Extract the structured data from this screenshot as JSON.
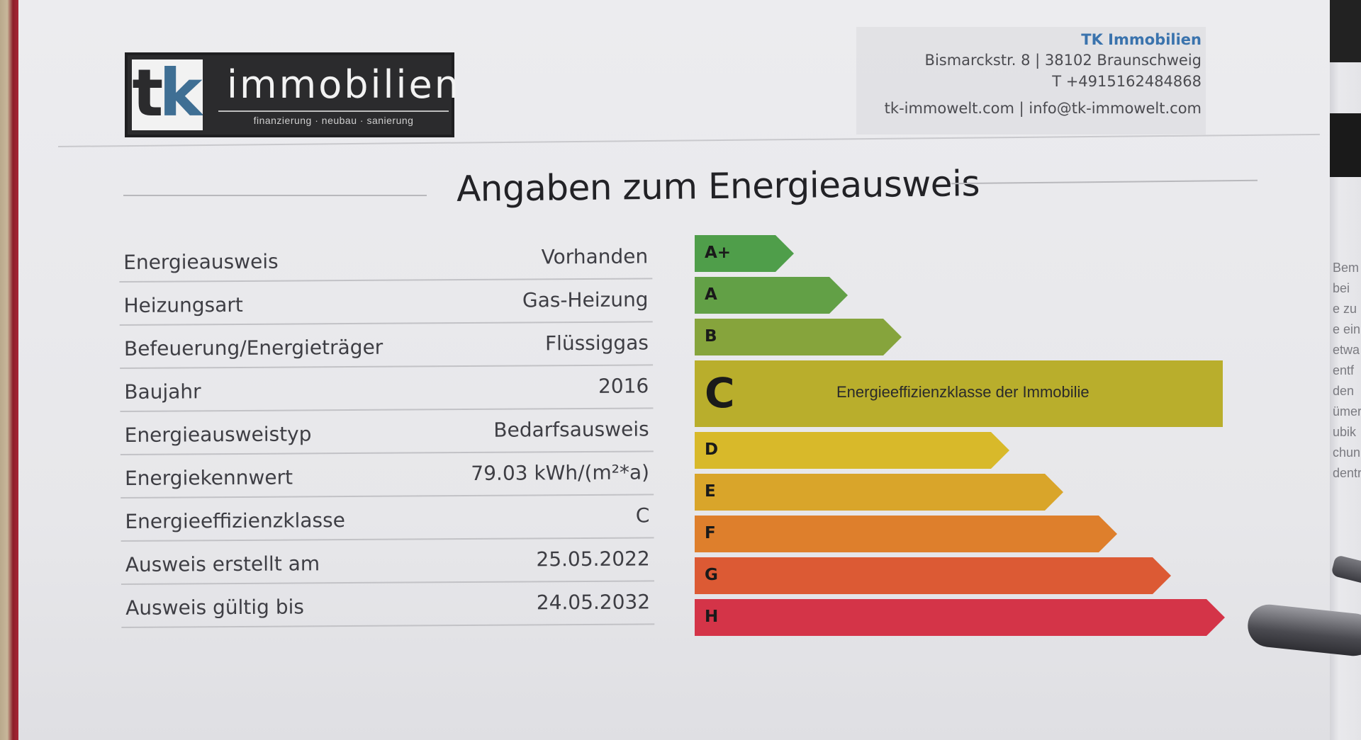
{
  "logo": {
    "mark_t": "t",
    "mark_k": "k",
    "wordmark": "immobilien",
    "tagline": "finanzierung · neubau · sanierung"
  },
  "contact": {
    "company": "TK Immobilien",
    "address": "Bismarckstr. 8 | 38102 Braunschweig",
    "phone": "T +4915162484868",
    "web_mail": "tk-immowelt.com | info@tk-immowelt.com",
    "accent_color": "#3a73ad"
  },
  "title": "Angaben zum Energieausweis",
  "details": [
    {
      "label": "Energieausweis",
      "value": "Vorhanden"
    },
    {
      "label": "Heizungsart",
      "value": "Gas-Heizung"
    },
    {
      "label": "Befeuerung/Energieträger",
      "value": "Flüssiggas"
    },
    {
      "label": "Baujahr",
      "value": "2016"
    },
    {
      "label": "Energieausweistyp",
      "value": "Bedarfsausweis"
    },
    {
      "label": "Energiekennwert",
      "value": "79.03 kWh/(m²*a)"
    },
    {
      "label": "Energieeffizienzklasse",
      "value": "C"
    },
    {
      "label": "Ausweis erstellt am",
      "value": "25.05.2022"
    },
    {
      "label": "Ausweis gültig bis",
      "value": "24.05.2032"
    }
  ],
  "energy_scale": {
    "selected_class": "C",
    "selected_note": "Energieeffizienzklasse der Immobilie",
    "classes": [
      {
        "label": "A+",
        "color": "#4f9e4a"
      },
      {
        "label": "A",
        "color": "#62a046"
      },
      {
        "label": "B",
        "color": "#86a43c"
      },
      {
        "label": "C",
        "color": "#b9ae2c"
      },
      {
        "label": "D",
        "color": "#d8b92a"
      },
      {
        "label": "E",
        "color": "#d9a52a"
      },
      {
        "label": "F",
        "color": "#de7f2c"
      },
      {
        "label": "G",
        "color": "#dc5a34"
      },
      {
        "label": "H",
        "color": "#d43448"
      }
    ]
  },
  "edge_text": [
    "Bem",
    "bei",
    "e zu",
    "e ein",
    "etwa",
    "entf",
    "",
    "den",
    "ümer",
    "ubik",
    "chun",
    "dentr"
  ]
}
